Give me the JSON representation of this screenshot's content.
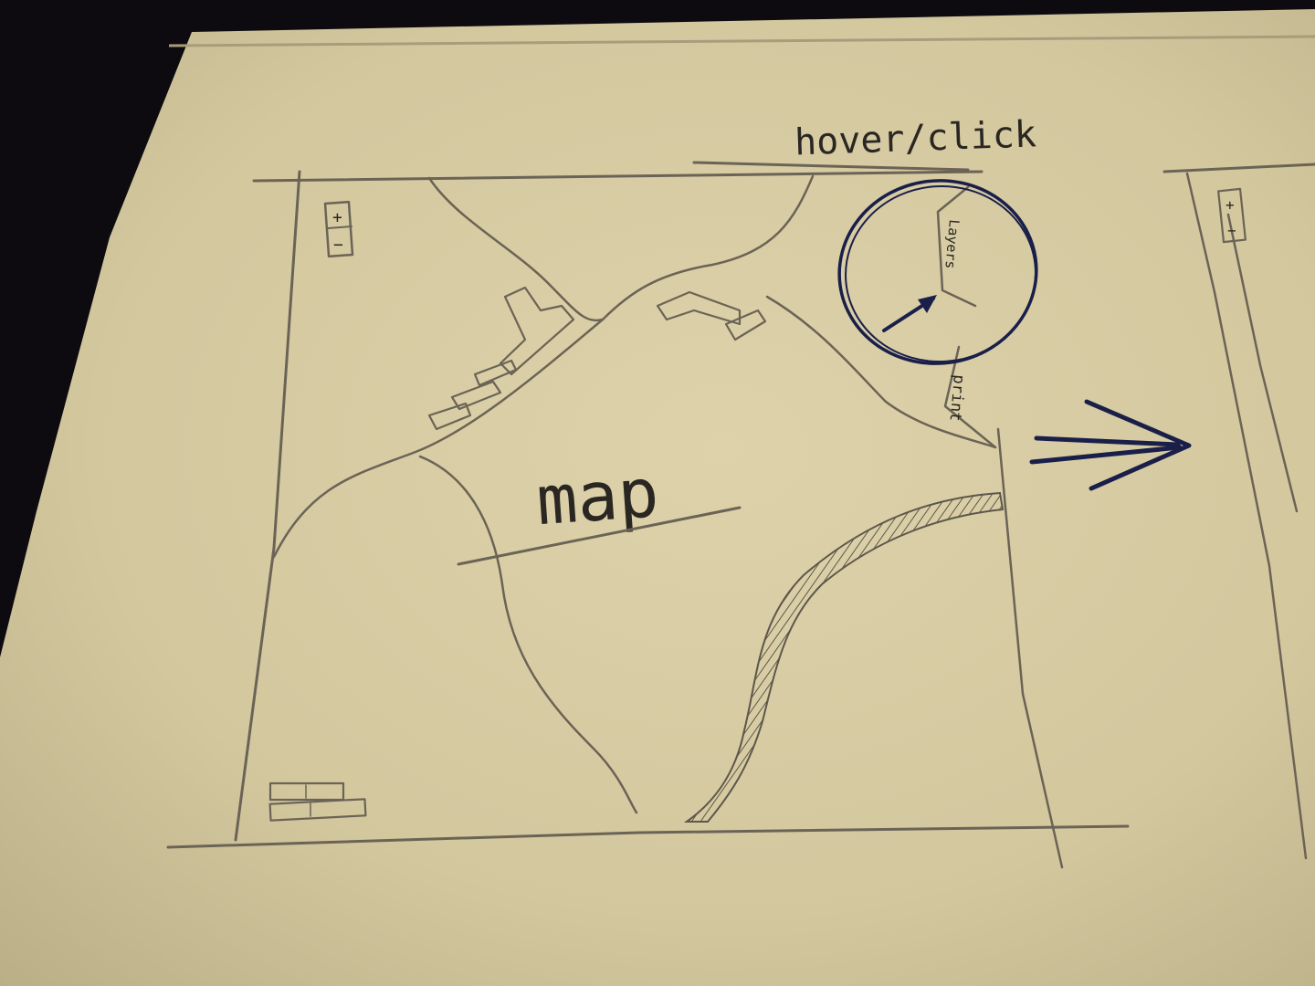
{
  "photo": {
    "subject": "hand-drawn wireframe sketch of a map interface on paper",
    "annotations": {
      "hover_label": "hover/click",
      "map_label": "map",
      "layers_label": "Layers",
      "print_label": "print"
    },
    "colors": {
      "background_dark": "#0d0b10",
      "paper": "#d8cda5",
      "pencil": "#6b6456",
      "blue_ink": "#1a1f4a"
    }
  }
}
